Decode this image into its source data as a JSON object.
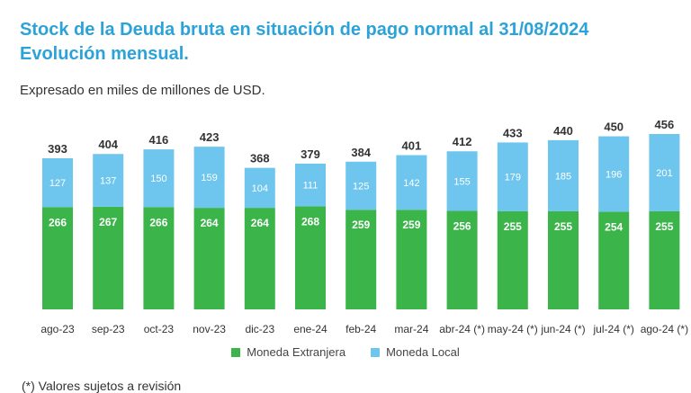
{
  "title_line1": "Stock de la Deuda bruta en situación de pago normal al 31/08/2024",
  "title_line2": "Evolución mensual.",
  "subtitle": "Expresado en miles de millones de USD.",
  "footnote": "(*) Valores sujetos a revisión",
  "colors": {
    "foreign": "#3bb54a",
    "local": "#6ec6ee",
    "title": "#2ba3d9"
  },
  "chart_data": {
    "type": "bar",
    "stacked": true,
    "title": "Stock de la Deuda bruta en situación de pago normal al 31/08/2024 — Evolución mensual.",
    "ylabel": "Expresado en miles de millones de USD.",
    "categories": [
      "ago-23",
      "sep-23",
      "oct-23",
      "nov-23",
      "dic-23",
      "ene-24",
      "feb-24",
      "mar-24",
      "abr-24 (*)",
      "may-24 (*)",
      "jun-24 (*)",
      "jul-24 (*)",
      "ago-24 (*)"
    ],
    "series": [
      {
        "name": "Moneda Extranjera",
        "values": [
          266,
          267,
          266,
          264,
          264,
          268,
          259,
          259,
          256,
          255,
          255,
          254,
          255
        ]
      },
      {
        "name": "Moneda Local",
        "values": [
          127,
          137,
          150,
          159,
          104,
          111,
          125,
          142,
          155,
          179,
          185,
          196,
          201
        ]
      }
    ],
    "totals": [
      393,
      404,
      416,
      423,
      368,
      379,
      384,
      401,
      412,
      433,
      440,
      450,
      456
    ],
    "ylim": [
      0,
      456
    ],
    "legend_position": "bottom"
  }
}
